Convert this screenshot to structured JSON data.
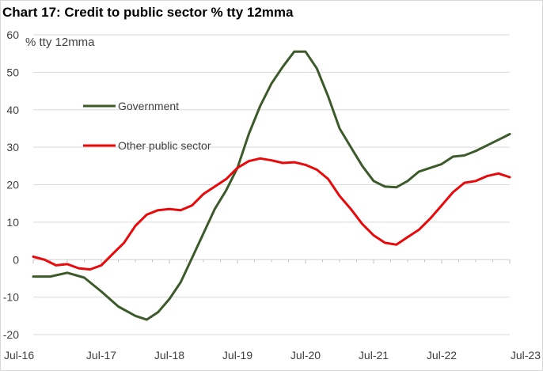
{
  "chart_data": {
    "type": "line",
    "title": "Chart 17: Credit to public sector % tty 12mma",
    "unit_label": "% tty 12mma",
    "ylim": [
      -20,
      60
    ],
    "yticks": [
      60,
      50,
      40,
      30,
      20,
      10,
      0,
      -10,
      -20
    ],
    "x_tick_labels": [
      "Jul-16",
      "Jul-17",
      "Jul-18",
      "Jul-19",
      "Jul-20",
      "Jul-21",
      "Jul-22",
      "Jul-23"
    ],
    "xlim": [
      "2016-07",
      "2023-07"
    ],
    "grid": "horizontal",
    "legend_position": "left-upper, inside plot",
    "series": [
      {
        "name": "Government",
        "color": "#3d5a2a",
        "points": [
          [
            "2016-07",
            -4.5
          ],
          [
            "2016-10",
            -4.5
          ],
          [
            "2017-01",
            -3.5
          ],
          [
            "2017-04",
            -4.8
          ],
          [
            "2017-07",
            -8.5
          ],
          [
            "2017-10",
            -12.5
          ],
          [
            "2018-01",
            -15.0
          ],
          [
            "2018-03",
            -16.0
          ],
          [
            "2018-05",
            -14.0
          ],
          [
            "2018-07",
            -10.5
          ],
          [
            "2018-09",
            -6.0
          ],
          [
            "2018-11",
            0.5
          ],
          [
            "2019-01",
            7.0
          ],
          [
            "2019-03",
            13.5
          ],
          [
            "2019-05",
            18.5
          ],
          [
            "2019-07",
            24.5
          ],
          [
            "2019-09",
            33.5
          ],
          [
            "2019-11",
            41.0
          ],
          [
            "2020-01",
            47.0
          ],
          [
            "2020-03",
            51.5
          ],
          [
            "2020-05",
            55.5
          ],
          [
            "2020-07",
            55.5
          ],
          [
            "2020-09",
            51.0
          ],
          [
            "2020-11",
            43.5
          ],
          [
            "2021-01",
            35.0
          ],
          [
            "2021-03",
            30.0
          ],
          [
            "2021-05",
            25.0
          ],
          [
            "2021-07",
            21.0
          ],
          [
            "2021-09",
            19.5
          ],
          [
            "2021-11",
            19.3
          ],
          [
            "2022-01",
            21.0
          ],
          [
            "2022-03",
            23.5
          ],
          [
            "2022-05",
            24.5
          ],
          [
            "2022-07",
            25.5
          ],
          [
            "2022-09",
            27.5
          ],
          [
            "2022-11",
            27.8
          ],
          [
            "2023-01",
            29.0
          ],
          [
            "2023-03",
            30.5
          ],
          [
            "2023-05",
            32.0
          ],
          [
            "2023-07",
            33.5
          ]
        ]
      },
      {
        "name": "Other public sector",
        "color": "#e8090a",
        "points": [
          [
            "2016-07",
            0.8
          ],
          [
            "2016-09",
            0.0
          ],
          [
            "2016-11",
            -1.5
          ],
          [
            "2017-01",
            -1.2
          ],
          [
            "2017-03",
            -2.3
          ],
          [
            "2017-05",
            -2.6
          ],
          [
            "2017-07",
            -1.5
          ],
          [
            "2017-09",
            1.5
          ],
          [
            "2017-11",
            4.5
          ],
          [
            "2018-01",
            9.0
          ],
          [
            "2018-03",
            12.0
          ],
          [
            "2018-05",
            13.2
          ],
          [
            "2018-07",
            13.5
          ],
          [
            "2018-09",
            13.2
          ],
          [
            "2018-11",
            14.5
          ],
          [
            "2019-01",
            17.5
          ],
          [
            "2019-03",
            19.5
          ],
          [
            "2019-05",
            21.5
          ],
          [
            "2019-07",
            24.5
          ],
          [
            "2019-09",
            26.3
          ],
          [
            "2019-11",
            27.0
          ],
          [
            "2020-01",
            26.5
          ],
          [
            "2020-03",
            25.8
          ],
          [
            "2020-05",
            26.0
          ],
          [
            "2020-07",
            25.3
          ],
          [
            "2020-09",
            24.0
          ],
          [
            "2020-11",
            21.5
          ],
          [
            "2021-01",
            17.0
          ],
          [
            "2021-03",
            13.5
          ],
          [
            "2021-05",
            9.5
          ],
          [
            "2021-07",
            6.5
          ],
          [
            "2021-09",
            4.5
          ],
          [
            "2021-11",
            4.0
          ],
          [
            "2022-01",
            6.0
          ],
          [
            "2022-03",
            8.0
          ],
          [
            "2022-05",
            11.0
          ],
          [
            "2022-07",
            14.5
          ],
          [
            "2022-09",
            18.0
          ],
          [
            "2022-11",
            20.5
          ],
          [
            "2023-01",
            21.0
          ],
          [
            "2023-03",
            22.3
          ],
          [
            "2023-05",
            23.0
          ],
          [
            "2023-07",
            22.0
          ]
        ]
      }
    ]
  }
}
